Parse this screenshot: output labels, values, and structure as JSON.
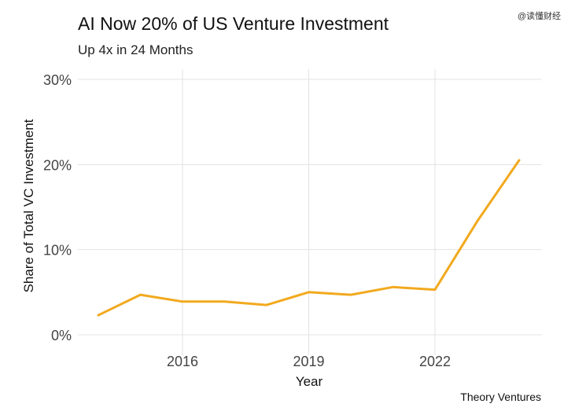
{
  "watermark": "@读懂财经",
  "caption": "Theory Ventures",
  "chart_data": {
    "type": "line",
    "title": "AI Now 20% of US Venture Investment",
    "subtitle": "Up 4x in 24 Months",
    "xlabel": "Year",
    "ylabel": "Share of Total VC Investment",
    "x": [
      2014,
      2015,
      2016,
      2017,
      2018,
      2019,
      2020,
      2021,
      2022,
      2023,
      2024
    ],
    "series": [
      {
        "values": [
          2.3,
          4.7,
          3.9,
          3.9,
          3.5,
          5.0,
          4.7,
          5.6,
          5.3,
          13.3,
          20.5
        ]
      }
    ],
    "xlim": [
      2013.5,
      2024.5
    ],
    "ylim": [
      0,
      30
    ],
    "xticks": [
      "2016",
      "2019",
      "2022"
    ],
    "yticks": [
      "0%",
      "10%",
      "20%",
      "30%"
    ],
    "line_color": "#F2A91E",
    "grid": true
  }
}
